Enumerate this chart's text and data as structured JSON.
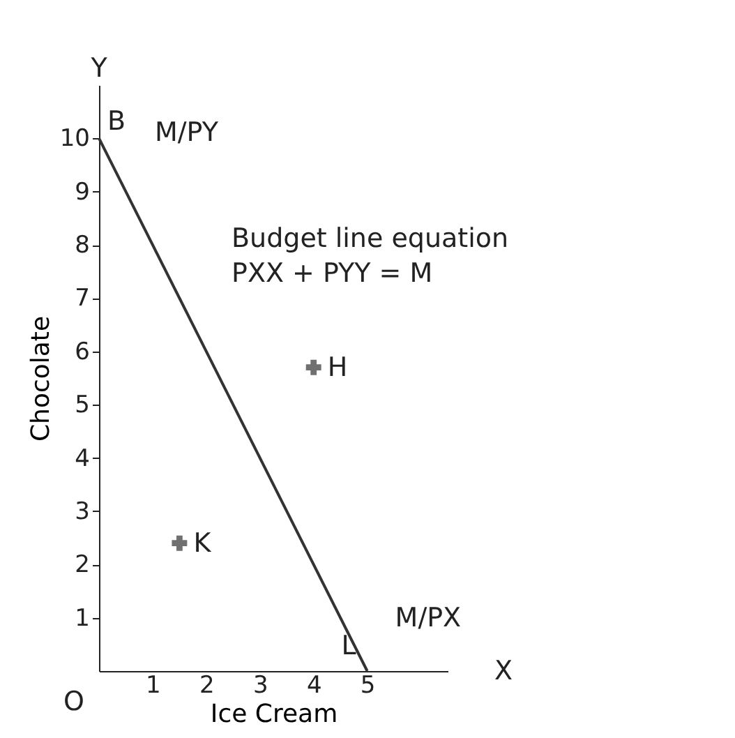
{
  "chart_data": {
    "type": "line",
    "xlabel": "Ice Cream",
    "ylabel": "Chocolate",
    "xlim": [
      0,
      6.5
    ],
    "ylim": [
      0,
      11
    ],
    "xticks": [
      1,
      2,
      3,
      4,
      5
    ],
    "yticks": [
      1,
      2,
      3,
      4,
      5,
      6,
      7,
      8,
      9,
      10
    ],
    "grid": false,
    "series": [
      {
        "color": "#333333",
        "x": [
          0,
          5
        ],
        "values": [
          10,
          0
        ]
      },
      {
        "type": "scatter",
        "marker": "cross",
        "color": "#333333",
        "x": [
          4,
          1.5
        ],
        "values": [
          5.7,
          2.4
        ]
      }
    ],
    "annotations": [
      {
        "text": "B",
        "x": 0,
        "y": 10
      },
      {
        "text": "M/PY",
        "x": 0,
        "y": 10
      },
      "Budget line equation",
      "PXX + PYY = M",
      {
        "text": "L",
        "x": 5,
        "y": 0
      },
      {
        "text": "M/PX",
        "x": 5,
        "y": 0
      },
      {
        "text": "H",
        "x": 4,
        "y": 5.7
      },
      {
        "text": "K",
        "x": 1.5,
        "y": 2.4
      },
      "X",
      "Y",
      "O"
    ]
  }
}
